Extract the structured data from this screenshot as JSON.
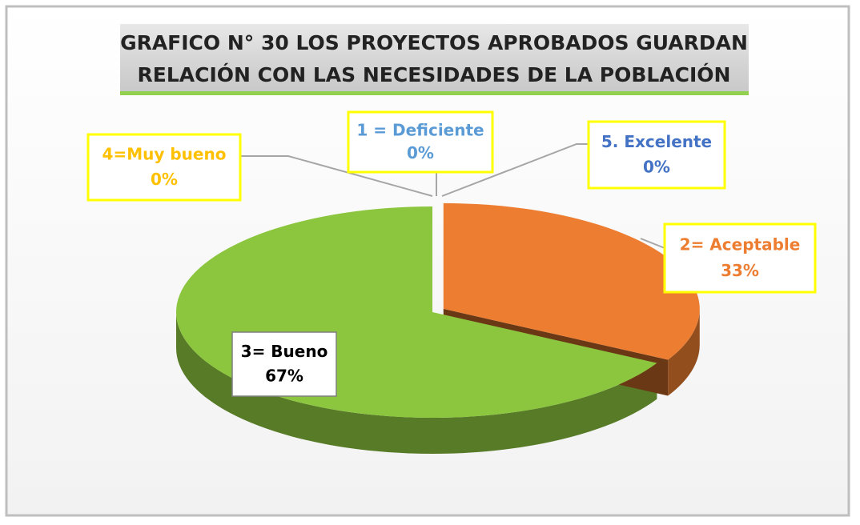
{
  "chart_data": {
    "type": "pie3d",
    "title": [
      "GRAFICO N° 30 LOS PROYECTOS APROBADOS GUARDAN",
      "RELACIÓN CON LAS NECESIDADES DE LA POBLACIÓN"
    ],
    "categories": [
      "1 = Deficiente",
      "2= Aceptable",
      "3= Bueno",
      "4=Muy bueno",
      "5. Excelente"
    ],
    "values": [
      0,
      33,
      67,
      0,
      0
    ],
    "value_labels": [
      "0%",
      "33%",
      "67%",
      "0%",
      "0%"
    ],
    "colors": [
      "#5b9bd5",
      "#ed7d31",
      "#8cc63f",
      "#ffc000",
      "#4472c4"
    ]
  }
}
